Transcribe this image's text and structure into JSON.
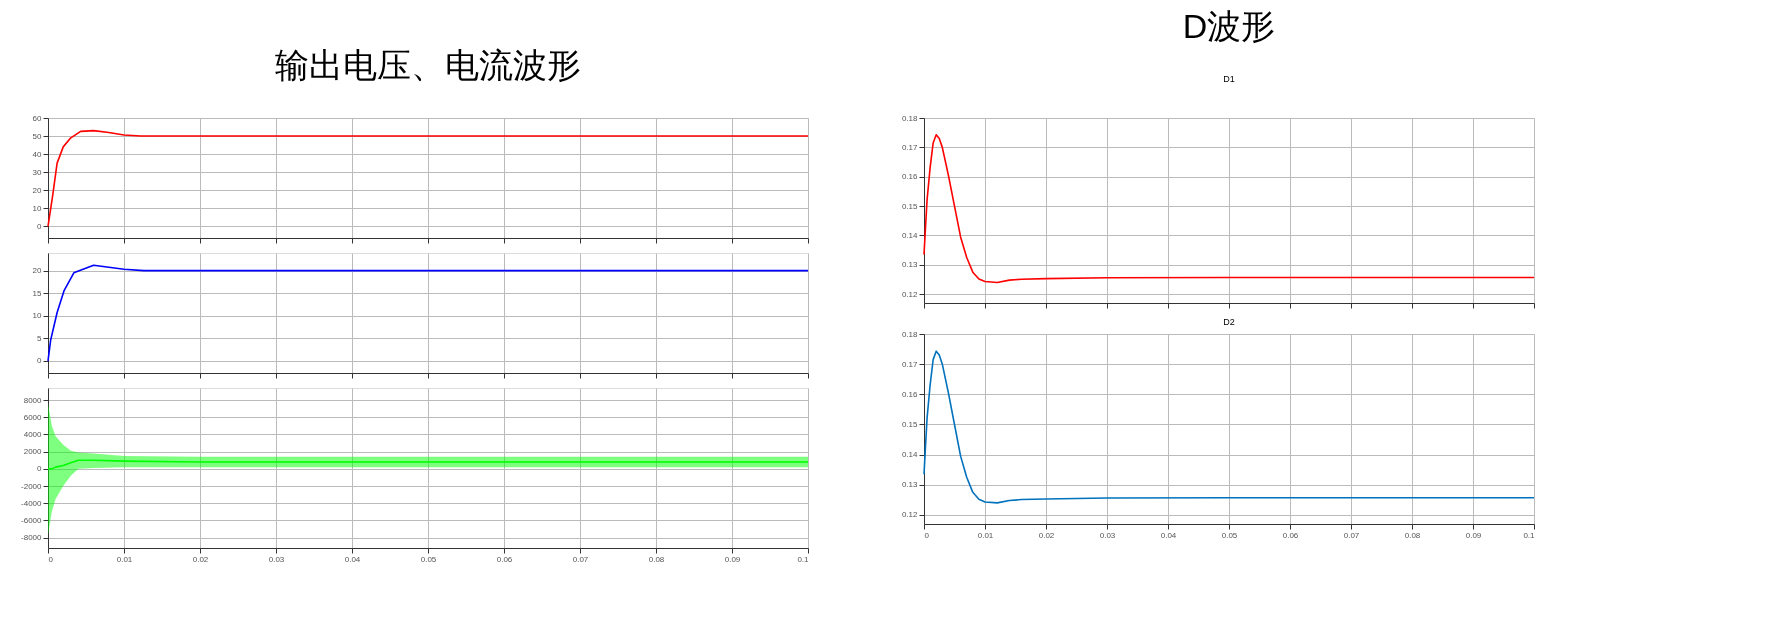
{
  "chart_data": [
    {
      "type": "line",
      "title": "输出电压、电流波形",
      "x": [
        0,
        0.0006,
        0.0012,
        0.002,
        0.003,
        0.0043,
        0.006,
        0.008,
        0.01,
        0.0122,
        0.02,
        0.04,
        0.06,
        0.08,
        0.1
      ],
      "series": [
        {
          "color": "#ff0000",
          "values": [
            0,
            16.5,
            35,
            44,
            49,
            52.6,
            53,
            52,
            50.6,
            50,
            50,
            50,
            50,
            50,
            50
          ]
        }
      ],
      "xlim": [
        0,
        0.1
      ],
      "xticks": [
        0,
        0.01,
        0.02,
        0.03,
        0.04,
        0.05,
        0.06,
        0.07,
        0.08,
        0.09,
        0.1
      ],
      "ylim": [
        -6.5,
        60
      ],
      "yticks": [
        0,
        10,
        20,
        30,
        40,
        50,
        60
      ],
      "tick_labels": "y",
      "grid": true,
      "marker": "none",
      "line_style": "solid"
    },
    {
      "type": "line",
      "x": [
        0,
        0.00035,
        0.0012,
        0.0021,
        0.0034,
        0.006,
        0.01,
        0.0126,
        0.02,
        0.04,
        0.06,
        0.08,
        0.1
      ],
      "series": [
        {
          "color": "#0000ff",
          "values": [
            0,
            4.6,
            10.7,
            15.5,
            19.5,
            21.2,
            20.3,
            20,
            20,
            20,
            20,
            20,
            20
          ]
        }
      ],
      "xlim": [
        0,
        0.1
      ],
      "xticks": [
        0,
        0.01,
        0.02,
        0.03,
        0.04,
        0.05,
        0.06,
        0.07,
        0.08,
        0.09,
        0.1
      ],
      "ylim": [
        -2.7,
        23.9
      ],
      "yticks": [
        0,
        5,
        10,
        15,
        20
      ],
      "tick_labels": "y",
      "grid": true,
      "marker": "none",
      "line_style": "solid"
    },
    {
      "type": "line",
      "x": [
        0,
        0.0005,
        0.001,
        0.002,
        0.003,
        0.004,
        0.006,
        0.01,
        0.02,
        0.1
      ],
      "series": [
        {
          "color": "#00ff00",
          "values": [
            0,
            0,
            200,
            400,
            700,
            1000,
            1000,
            900,
            800,
            800
          ],
          "lower": [
            -7700,
            -5000,
            -3500,
            -2000,
            -800,
            0,
            100,
            200,
            200,
            200
          ],
          "upper": [
            7600,
            5000,
            3800,
            2800,
            2100,
            1900,
            1800,
            1500,
            1400,
            1400
          ]
        }
      ],
      "xlim": [
        0,
        0.1
      ],
      "xticks": [
        0,
        0.01,
        0.02,
        0.03,
        0.04,
        0.05,
        0.06,
        0.07,
        0.08,
        0.09,
        0.1
      ],
      "ylim": [
        -9200,
        9400
      ],
      "yticks": [
        -8000,
        -6000,
        -4000,
        -2000,
        0,
        2000,
        4000,
        6000,
        8000
      ],
      "grid": true,
      "marker": "none",
      "line_style": "solid"
    },
    {
      "type": "line",
      "title": "D波形",
      "subtitle": "D1",
      "x": [
        0,
        0.0002,
        0.0005,
        0.001,
        0.0015,
        0.002,
        0.0025,
        0.003,
        0.004,
        0.005,
        0.006,
        0.007,
        0.008,
        0.009,
        0.01,
        0.012,
        0.014,
        0.016,
        0.02,
        0.03,
        0.05,
        0.1
      ],
      "series": [
        {
          "color": "#ff0000",
          "values": [
            0.1335,
            0.141,
            0.152,
            0.163,
            0.1715,
            0.1743,
            0.173,
            0.17,
            0.1605,
            0.15,
            0.1395,
            0.1325,
            0.1275,
            0.1252,
            0.1243,
            0.124,
            0.1248,
            0.1251,
            0.1253,
            0.1256,
            0.1257,
            0.1257
          ]
        }
      ],
      "xlim": [
        0,
        0.1
      ],
      "xticks": [
        0,
        0.01,
        0.02,
        0.03,
        0.04,
        0.05,
        0.06,
        0.07,
        0.08,
        0.09,
        0.1
      ],
      "ylim": [
        0.117,
        0.18
      ],
      "yticks": [
        0.12,
        0.13,
        0.14,
        0.15,
        0.16,
        0.17,
        0.18
      ],
      "tick_labels": "y",
      "grid": true,
      "marker": "none",
      "line_style": "solid"
    },
    {
      "type": "line",
      "title": "D2",
      "x": [
        0,
        0.0002,
        0.0005,
        0.001,
        0.0015,
        0.002,
        0.0025,
        0.003,
        0.004,
        0.005,
        0.006,
        0.007,
        0.008,
        0.009,
        0.01,
        0.012,
        0.014,
        0.016,
        0.02,
        0.03,
        0.05,
        0.1
      ],
      "series": [
        {
          "color": "#0072bd",
          "values": [
            0.1335,
            0.141,
            0.152,
            0.163,
            0.1715,
            0.1743,
            0.173,
            0.17,
            0.1605,
            0.15,
            0.1395,
            0.1325,
            0.1275,
            0.1252,
            0.1243,
            0.124,
            0.1248,
            0.1251,
            0.1253,
            0.1256,
            0.1257,
            0.1257
          ]
        }
      ],
      "xlim": [
        0,
        0.1
      ],
      "xticks": [
        0,
        0.01,
        0.02,
        0.03,
        0.04,
        0.05,
        0.06,
        0.07,
        0.08,
        0.09,
        0.1
      ],
      "ylim": [
        0.117,
        0.18
      ],
      "yticks": [
        0.12,
        0.13,
        0.14,
        0.15,
        0.16,
        0.17,
        0.18
      ],
      "grid": true,
      "marker": "none",
      "line_style": "solid"
    }
  ]
}
